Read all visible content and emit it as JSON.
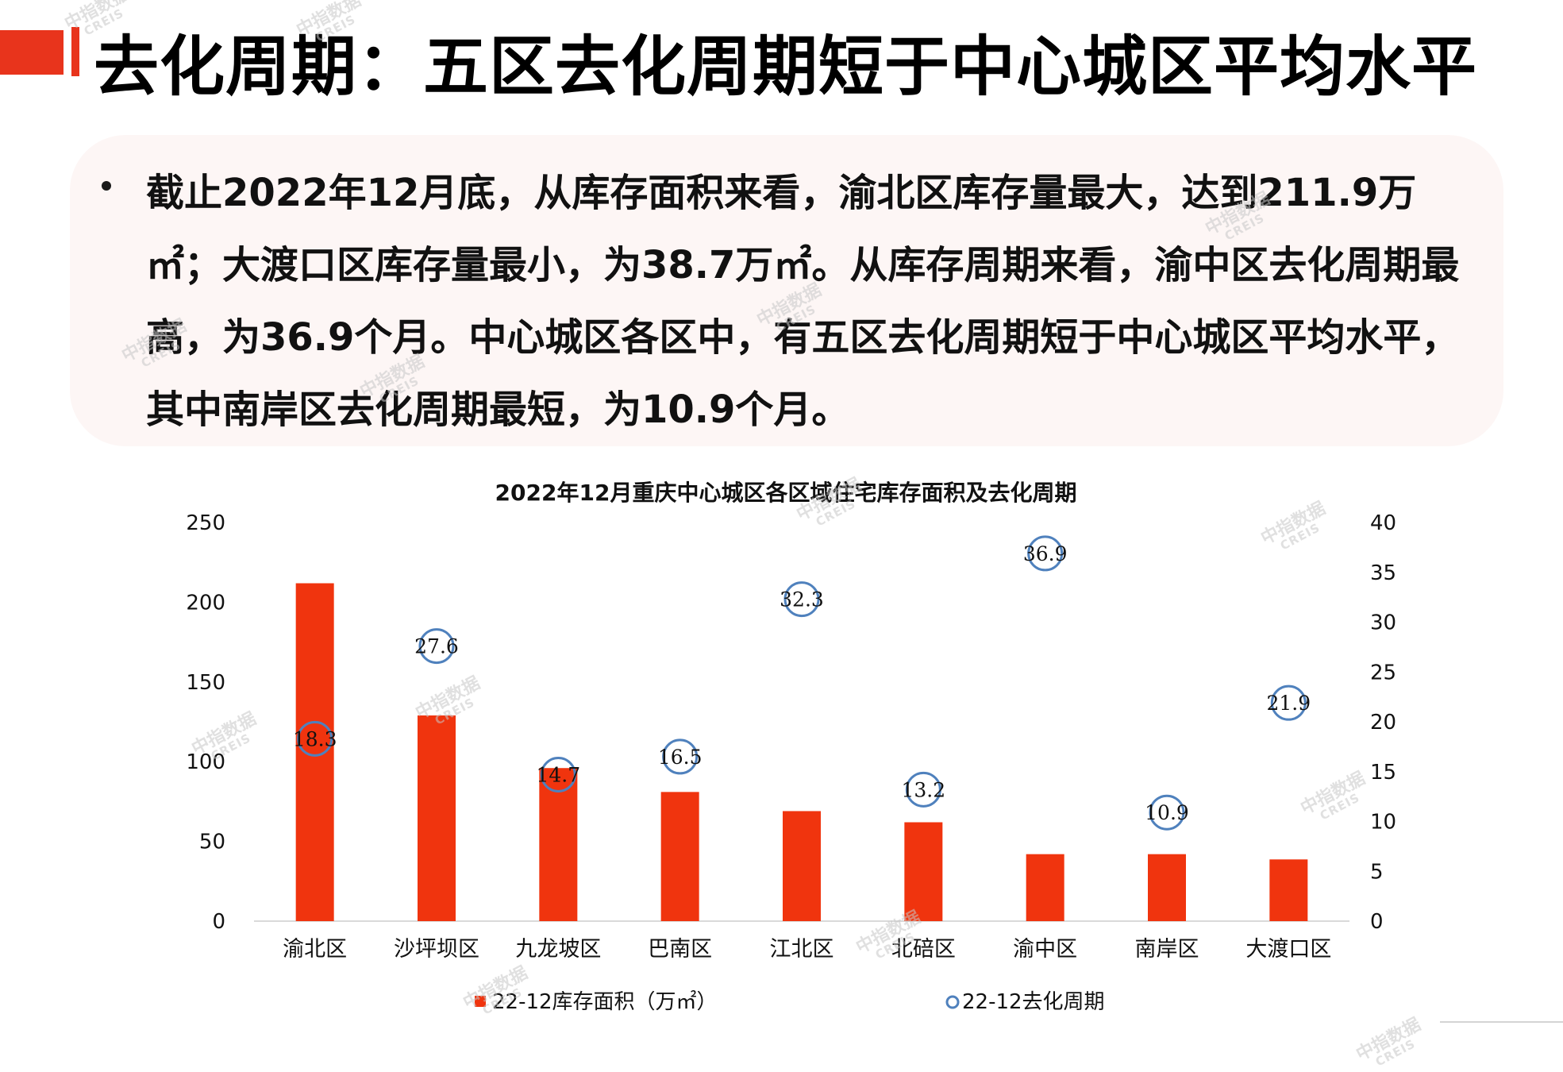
{
  "title": "去化周期：五区去化周期短于中心城区平均水平",
  "summary": "截止2022年12月底，从库存面积来看，渝北区库存量最大，达到211.9万㎡；大渡口区库存量最小，为38.7万㎡。从库存周期来看，渝中区去化周期最高，为36.9个月。中心城区各区中，有五区去化周期短于中心城区平均水平，其中南岸区去化周期最短，为10.9个月。",
  "watermark": {
    "cn": "中指数据",
    "en": "CREIS"
  },
  "colors": {
    "accent": "#e8341c",
    "bar": "#f0340e",
    "marker": "#4f81bd"
  },
  "icons": {
    "bullet": "bullet-dot-icon",
    "bar_legend": "square-marker-icon",
    "line_legend": "circle-marker-icon"
  },
  "chart_data": {
    "type": "bar",
    "title": "2022年12月重庆中心城区各区域住宅库存面积及去化周期",
    "categories": [
      "渝北区",
      "沙坪坝区",
      "九龙坡区",
      "巴南区",
      "江北区",
      "北碚区",
      "渝中区",
      "南岸区",
      "大渡口区"
    ],
    "series": [
      {
        "name": "22-12库存面积（万㎡）",
        "type": "bar",
        "axis": "left",
        "values": [
          211.9,
          129.0,
          96.0,
          81.0,
          69.0,
          62.0,
          42.0,
          42.0,
          38.7
        ]
      },
      {
        "name": "22-12去化周期",
        "type": "scatter",
        "axis": "right",
        "marker": "circle",
        "values": [
          18.3,
          27.6,
          14.7,
          16.5,
          32.3,
          13.2,
          36.9,
          10.9,
          21.9
        ],
        "labels": [
          "18.3",
          "27.6",
          "14.7",
          "16.5",
          "32.3",
          "13.2",
          "36.9",
          "10.9",
          "21.9"
        ]
      }
    ],
    "y_left": {
      "min": 0,
      "max": 250,
      "ticks": [
        "0",
        "50",
        "100",
        "150",
        "200",
        "250"
      ]
    },
    "y_right": {
      "min": 0,
      "max": 40,
      "ticks": [
        "0",
        "5",
        "10",
        "15",
        "20",
        "25",
        "30",
        "35",
        "40"
      ]
    },
    "grid": false,
    "legend": "bottom"
  }
}
